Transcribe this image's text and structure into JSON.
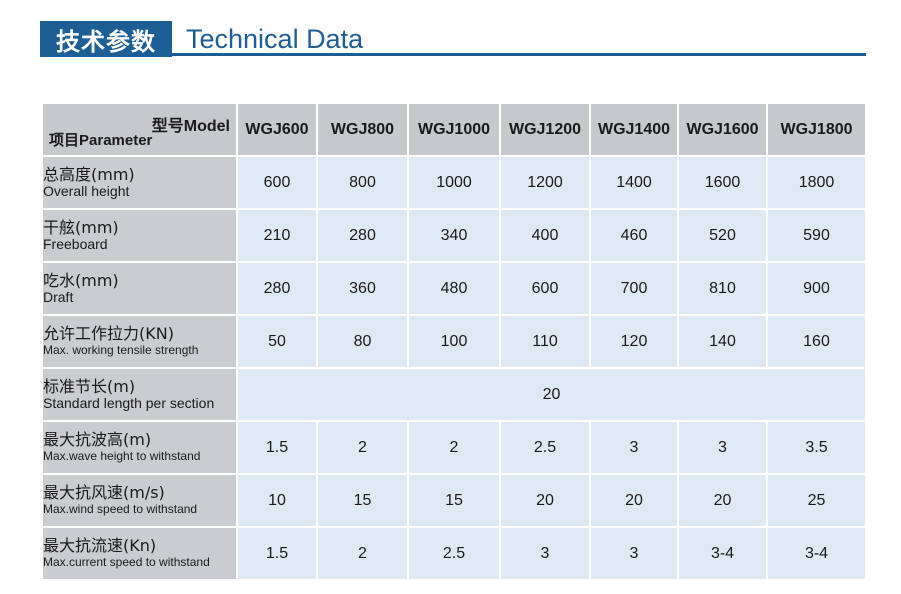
{
  "header": {
    "title_cn": "技术参数",
    "title_en": "Technical Data"
  },
  "table": {
    "corner_model_cn": "型号",
    "corner_model_en": "Model",
    "corner_param_cn": "项目",
    "corner_param_en": "Parameter",
    "models": [
      "WGJ600",
      "WGJ800",
      "WGJ1000",
      "WGJ1200",
      "WGJ1400",
      "WGJ1600",
      "WGJ1800"
    ],
    "rows": [
      {
        "cn": "总高度(mm)",
        "en": "Overall height",
        "values": [
          "600",
          "800",
          "1000",
          "1200",
          "1400",
          "1600",
          "1800"
        ]
      },
      {
        "cn": "干舷(mm)",
        "en": "Freeboard",
        "values": [
          "210",
          "280",
          "340",
          "400",
          "460",
          "520",
          "590"
        ]
      },
      {
        "cn": "吃水(mm)",
        "en": "Draft",
        "values": [
          "280",
          "360",
          "480",
          "600",
          "700",
          "810",
          "900"
        ]
      },
      {
        "cn": "允许工作拉力(KN)",
        "en": "Max. working tensile strength",
        "values": [
          "50",
          "80",
          "100",
          "110",
          "120",
          "140",
          "160"
        ]
      },
      {
        "cn": "标准节长(m)",
        "en": "Standard length per section",
        "merged_value": "20"
      },
      {
        "cn": "最大抗波高(m)",
        "en": "Max.wave height to withstand",
        "values": [
          "1.5",
          "2",
          "2",
          "2.5",
          "3",
          "3",
          "3.5"
        ]
      },
      {
        "cn": "最大抗风速(m/s)",
        "en": "Max.wind speed to withstand",
        "values": [
          "10",
          "15",
          "15",
          "20",
          "20",
          "20",
          "25"
        ]
      },
      {
        "cn": "最大抗流速(Kn)",
        "en": "Max.current speed to withstand",
        "values": [
          "1.5",
          "2",
          "2.5",
          "3",
          "3",
          "3-4",
          "3-4"
        ]
      }
    ]
  }
}
